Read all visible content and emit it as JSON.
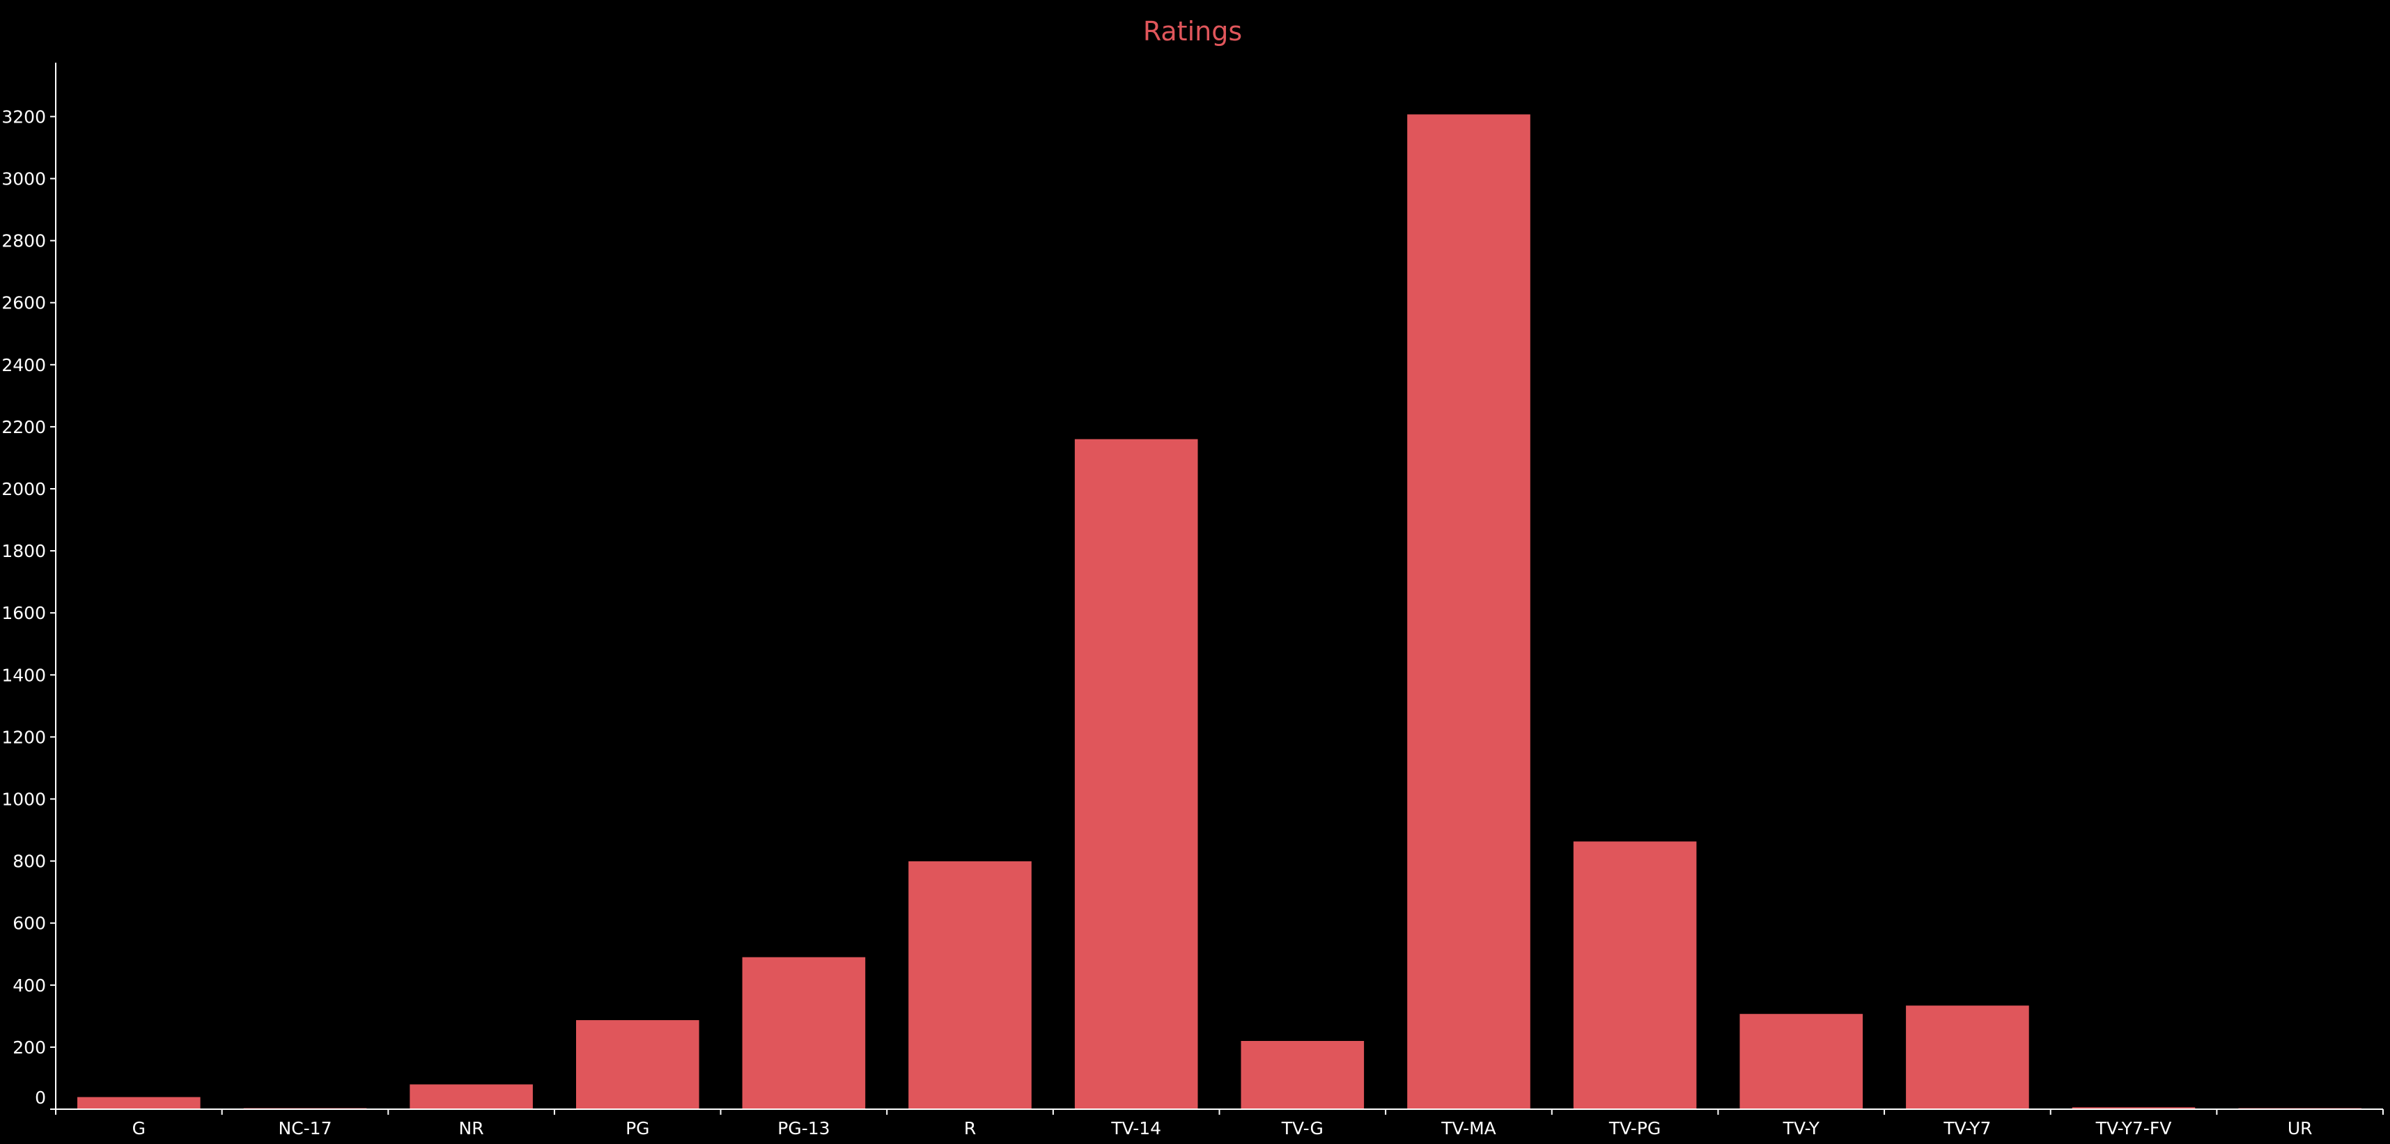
{
  "chart_data": {
    "type": "bar",
    "title": "Ratings",
    "xlabel": "",
    "ylabel": "",
    "categories": [
      "G",
      "NC-17",
      "NR",
      "PG",
      "PG-13",
      "R",
      "TV-14",
      "TV-G",
      "TV-MA",
      "TV-PG",
      "TV-Y",
      "TV-Y7",
      "TV-Y7-FV",
      "UR"
    ],
    "values": [
      39,
      3,
      80,
      287,
      490,
      799,
      2160,
      220,
      3207,
      863,
      307,
      334,
      6,
      3
    ],
    "yticks": [
      0,
      200,
      400,
      600,
      800,
      1000,
      1200,
      1400,
      1600,
      1800,
      2000,
      2200,
      2400,
      2600,
      2800,
      3000,
      3200
    ],
    "ylim": [
      0,
      3370
    ],
    "grid": false,
    "legend": "none",
    "colors": {
      "bar": "#e0565b",
      "title": "#e0565b",
      "axis": "#ffffff",
      "text": "#ffffff",
      "background": "#000000"
    }
  }
}
